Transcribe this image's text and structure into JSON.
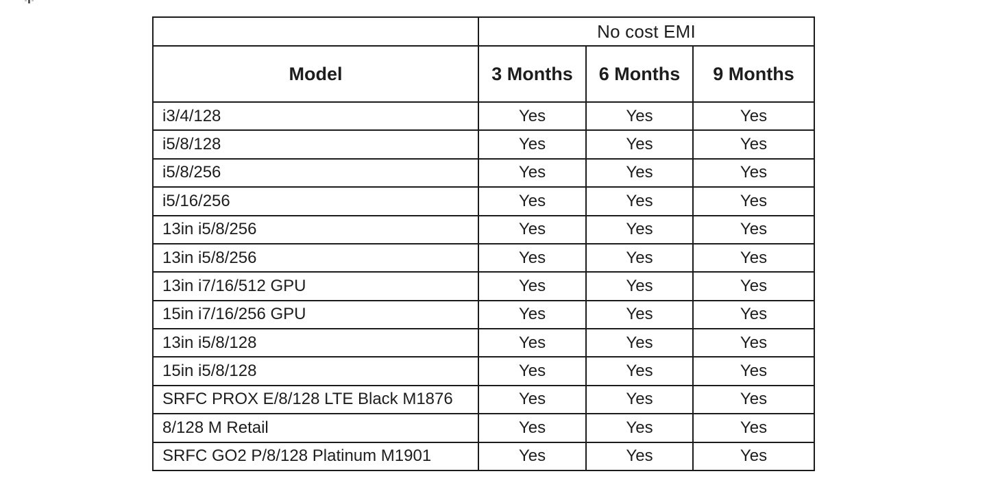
{
  "page": {
    "background": "#ffffff"
  },
  "table": {
    "group_header": "No cost EMI",
    "columns": [
      "Model",
      "3 Months",
      "6 Months",
      "9 Months"
    ],
    "rows": [
      {
        "model": "i3/4/128",
        "values": [
          "Yes",
          "Yes",
          "Yes"
        ]
      },
      {
        "model": "i5/8/128",
        "values": [
          "Yes",
          "Yes",
          "Yes"
        ]
      },
      {
        "model": "i5/8/256",
        "values": [
          "Yes",
          "Yes",
          "Yes"
        ]
      },
      {
        "model": "i5/16/256",
        "values": [
          "Yes",
          "Yes",
          "Yes"
        ]
      },
      {
        "model": "13in i5/8/256",
        "values": [
          "Yes",
          "Yes",
          "Yes"
        ]
      },
      {
        "model": "13in i5/8/256",
        "values": [
          "Yes",
          "Yes",
          "Yes"
        ]
      },
      {
        "model": "13in i7/16/512 GPU",
        "values": [
          "Yes",
          "Yes",
          "Yes"
        ]
      },
      {
        "model": "15in i7/16/256 GPU",
        "values": [
          "Yes",
          "Yes",
          "Yes"
        ]
      },
      {
        "model": "13in i5/8/128",
        "values": [
          "Yes",
          "Yes",
          "Yes"
        ]
      },
      {
        "model": "15in i5/8/128",
        "values": [
          "Yes",
          "Yes",
          "Yes"
        ]
      },
      {
        "model": "SRFC PROX E/8/128 LTE Black M1876",
        "values": [
          "Yes",
          "Yes",
          "Yes"
        ]
      },
      {
        "model": "8/128 M Retail",
        "values": [
          "Yes",
          "Yes",
          "Yes"
        ]
      },
      {
        "model": "SRFC GO2 P/8/128 Platinum M1901",
        "values": [
          "Yes",
          "Yes",
          "Yes"
        ]
      }
    ],
    "colors": {
      "border": "#1b1b1b",
      "text": "#1d1d1d",
      "background": "#ffffff"
    }
  },
  "chart_data": {
    "type": "table",
    "title": "No cost EMI",
    "columns": [
      "Model",
      "3 Months",
      "6 Months",
      "9 Months"
    ],
    "rows": [
      [
        "i3/4/128",
        "Yes",
        "Yes",
        "Yes"
      ],
      [
        "i5/8/128",
        "Yes",
        "Yes",
        "Yes"
      ],
      [
        "i5/8/256",
        "Yes",
        "Yes",
        "Yes"
      ],
      [
        "i5/16/256",
        "Yes",
        "Yes",
        "Yes"
      ],
      [
        "13in i5/8/256",
        "Yes",
        "Yes",
        "Yes"
      ],
      [
        "13in i5/8/256",
        "Yes",
        "Yes",
        "Yes"
      ],
      [
        "13in i7/16/512 GPU",
        "Yes",
        "Yes",
        "Yes"
      ],
      [
        "15in i7/16/256 GPU",
        "Yes",
        "Yes",
        "Yes"
      ],
      [
        "13in i5/8/128",
        "Yes",
        "Yes",
        "Yes"
      ],
      [
        "15in i5/8/128",
        "Yes",
        "Yes",
        "Yes"
      ],
      [
        "SRFC PROX E/8/128 LTE Black M1876",
        "Yes",
        "Yes",
        "Yes"
      ],
      [
        "8/128 M Retail",
        "Yes",
        "Yes",
        "Yes"
      ],
      [
        "SRFC GO2 P/8/128 Platinum M1901",
        "Yes",
        "Yes",
        "Yes"
      ]
    ]
  }
}
